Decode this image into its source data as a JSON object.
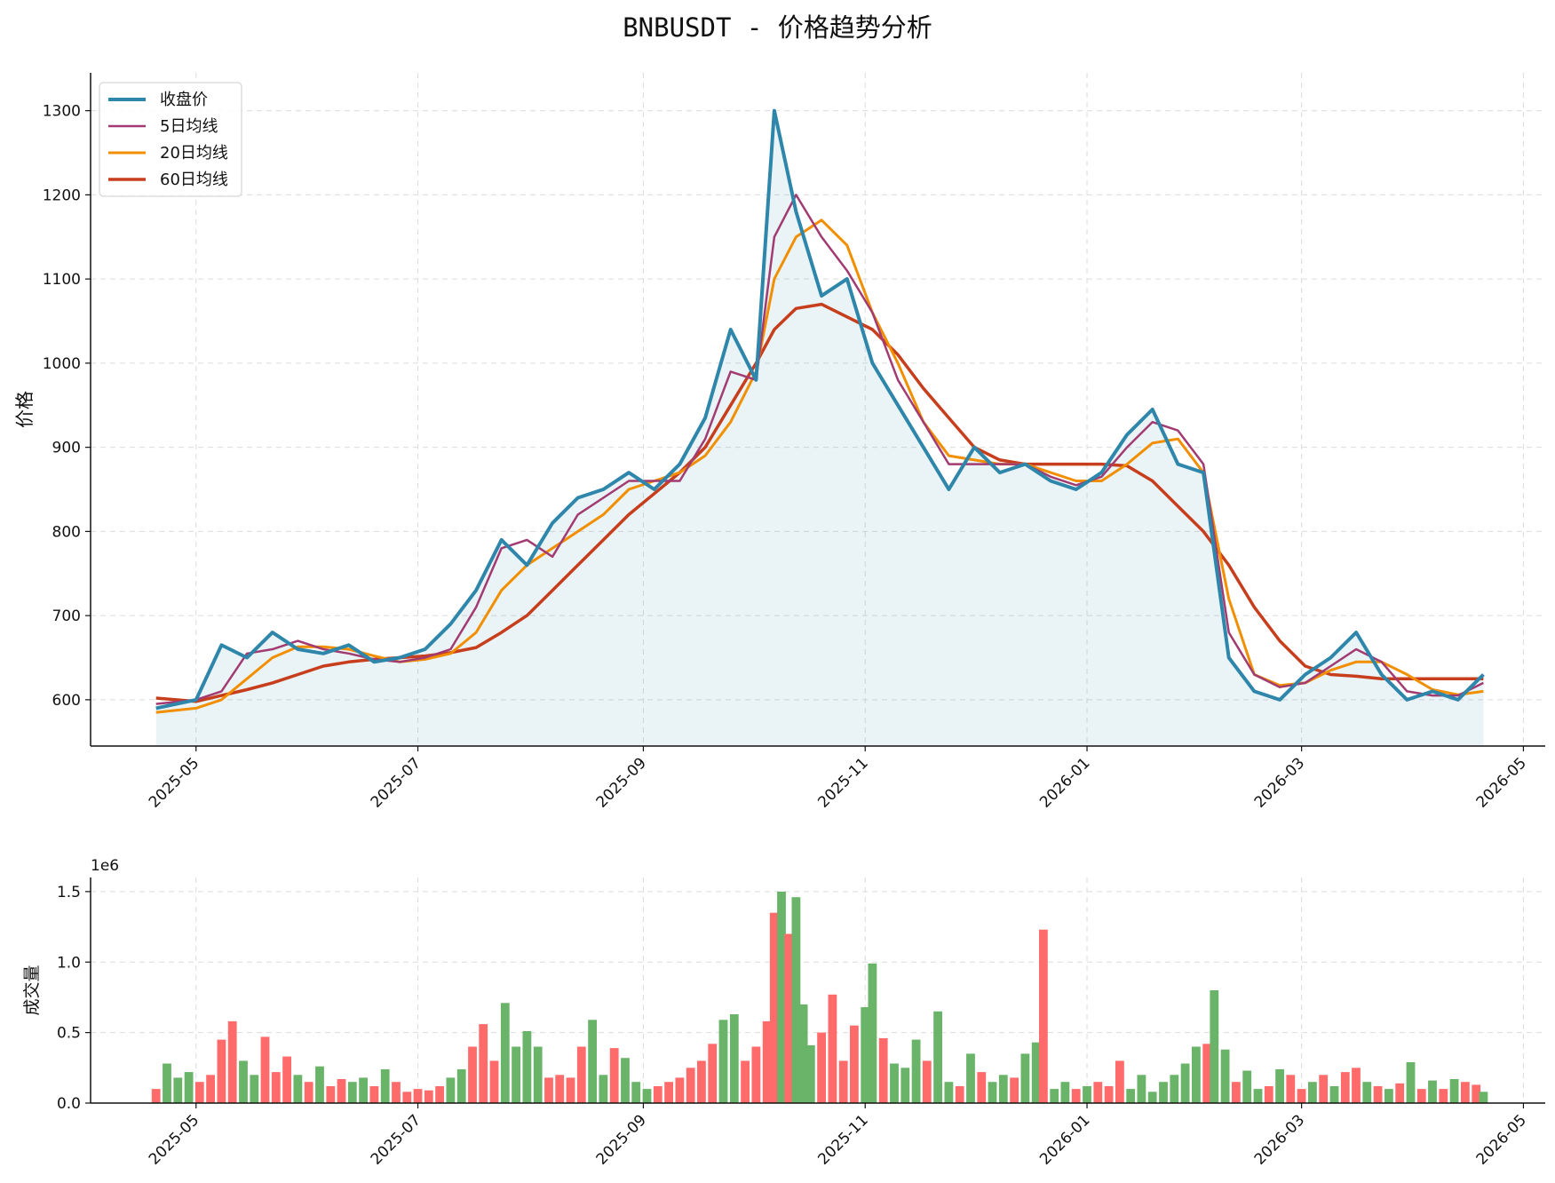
{
  "title": "BNBUSDT - 价格趋势分析",
  "chart_data": [
    {
      "type": "line",
      "ylabel": "价格",
      "ylim": [
        545,
        1345
      ],
      "xlim": [
        "2025-04-02",
        "2026-05-07"
      ],
      "grid": true,
      "legend_position": "top-left",
      "yticks": [
        600,
        700,
        800,
        900,
        1000,
        1100,
        1200,
        1300
      ],
      "xticks": [
        "2025-05",
        "2025-07",
        "2025-09",
        "2025-11",
        "2026-01",
        "2026-03",
        "2026-05"
      ],
      "x": [
        "2025-04-20",
        "2025-05-01",
        "2025-05-08",
        "2025-05-15",
        "2025-05-22",
        "2025-05-29",
        "2025-06-05",
        "2025-06-12",
        "2025-06-19",
        "2025-06-26",
        "2025-07-03",
        "2025-07-10",
        "2025-07-17",
        "2025-07-24",
        "2025-07-31",
        "2025-08-07",
        "2025-08-14",
        "2025-08-21",
        "2025-08-28",
        "2025-09-04",
        "2025-09-11",
        "2025-09-18",
        "2025-09-25",
        "2025-10-02",
        "2025-10-07",
        "2025-10-13",
        "2025-10-20",
        "2025-10-27",
        "2025-11-03",
        "2025-11-10",
        "2025-11-17",
        "2025-11-24",
        "2025-12-01",
        "2025-12-08",
        "2025-12-15",
        "2025-12-22",
        "2025-12-29",
        "2026-01-05",
        "2026-01-12",
        "2026-01-19",
        "2026-01-26",
        "2026-02-02",
        "2026-02-09",
        "2026-02-16",
        "2026-02-23",
        "2026-03-02",
        "2026-03-09",
        "2026-03-16",
        "2026-03-23",
        "2026-03-30",
        "2026-04-06",
        "2026-04-13",
        "2026-04-20"
      ],
      "series": [
        {
          "name": "收盘价",
          "color": "#2e86ab",
          "values": [
            590,
            600,
            665,
            650,
            680,
            660,
            655,
            665,
            645,
            650,
            660,
            690,
            730,
            790,
            760,
            810,
            840,
            850,
            870,
            850,
            880,
            935,
            1040,
            980,
            1300,
            1180,
            1080,
            1100,
            1000,
            950,
            900,
            850,
            900,
            870,
            880,
            860,
            850,
            870,
            915,
            945,
            880,
            870,
            650,
            610,
            600,
            630,
            650,
            680,
            630,
            600,
            610,
            600,
            630
          ]
        },
        {
          "name": "5日均线",
          "color": "#a23b72",
          "values": [
            595,
            600,
            610,
            655,
            660,
            670,
            660,
            655,
            648,
            645,
            650,
            660,
            710,
            780,
            790,
            770,
            820,
            840,
            860,
            860,
            860,
            910,
            990,
            980,
            1150,
            1200,
            1150,
            1110,
            1060,
            980,
            930,
            880,
            880,
            880,
            880,
            865,
            855,
            865,
            900,
            930,
            920,
            880,
            680,
            630,
            615,
            620,
            640,
            660,
            645,
            610,
            605,
            605,
            620
          ]
        },
        {
          "name": "20日均线",
          "color": "#f18f01",
          "values": [
            585,
            590,
            600,
            625,
            650,
            663,
            663,
            660,
            652,
            645,
            648,
            655,
            680,
            730,
            760,
            780,
            800,
            820,
            850,
            860,
            870,
            890,
            930,
            990,
            1100,
            1150,
            1170,
            1140,
            1060,
            1000,
            930,
            890,
            885,
            880,
            880,
            870,
            860,
            860,
            880,
            905,
            910,
            870,
            720,
            630,
            617,
            620,
            635,
            645,
            645,
            630,
            612,
            606,
            610
          ]
        },
        {
          "name": "60日均线",
          "color": "#c73e1d",
          "values": [
            602,
            598,
            605,
            612,
            620,
            630,
            640,
            645,
            648,
            650,
            652,
            656,
            662,
            680,
            700,
            730,
            760,
            790,
            820,
            845,
            870,
            900,
            950,
            1000,
            1040,
            1065,
            1070,
            1055,
            1040,
            1010,
            970,
            935,
            900,
            885,
            880,
            880,
            880,
            880,
            878,
            860,
            830,
            800,
            760,
            710,
            670,
            640,
            630,
            628,
            625,
            625,
            625,
            625,
            625
          ]
        }
      ]
    },
    {
      "type": "bar",
      "ylabel": "成交量",
      "ylim": [
        0,
        1600000
      ],
      "yticks_text": [
        "0.0",
        "0.5",
        "1.0",
        "1.5"
      ],
      "offset_text": "1e6",
      "xticks": [
        "2025-05",
        "2025-07",
        "2025-09",
        "2025-11",
        "2026-01",
        "2026-03",
        "2026-05"
      ],
      "up_color": "#6ab46a",
      "down_color": "#ff6b6b",
      "bars": [
        {
          "date": "2025-04-20",
          "v": 100000,
          "up": false
        },
        {
          "date": "2025-04-23",
          "v": 280000,
          "up": true
        },
        {
          "date": "2025-04-26",
          "v": 180000,
          "up": true
        },
        {
          "date": "2025-04-29",
          "v": 220000,
          "up": true
        },
        {
          "date": "2025-05-02",
          "v": 150000,
          "up": false
        },
        {
          "date": "2025-05-05",
          "v": 200000,
          "up": false
        },
        {
          "date": "2025-05-08",
          "v": 450000,
          "up": false
        },
        {
          "date": "2025-05-11",
          "v": 580000,
          "up": false
        },
        {
          "date": "2025-05-14",
          "v": 300000,
          "up": true
        },
        {
          "date": "2025-05-17",
          "v": 200000,
          "up": true
        },
        {
          "date": "2025-05-20",
          "v": 470000,
          "up": false
        },
        {
          "date": "2025-05-23",
          "v": 220000,
          "up": false
        },
        {
          "date": "2025-05-26",
          "v": 330000,
          "up": false
        },
        {
          "date": "2025-05-29",
          "v": 200000,
          "up": true
        },
        {
          "date": "2025-06-01",
          "v": 150000,
          "up": false
        },
        {
          "date": "2025-06-04",
          "v": 260000,
          "up": true
        },
        {
          "date": "2025-06-07",
          "v": 120000,
          "up": false
        },
        {
          "date": "2025-06-10",
          "v": 170000,
          "up": false
        },
        {
          "date": "2025-06-13",
          "v": 150000,
          "up": true
        },
        {
          "date": "2025-06-16",
          "v": 180000,
          "up": true
        },
        {
          "date": "2025-06-19",
          "v": 120000,
          "up": false
        },
        {
          "date": "2025-06-22",
          "v": 240000,
          "up": true
        },
        {
          "date": "2025-06-25",
          "v": 150000,
          "up": false
        },
        {
          "date": "2025-06-28",
          "v": 80000,
          "up": false
        },
        {
          "date": "2025-07-01",
          "v": 100000,
          "up": false
        },
        {
          "date": "2025-07-04",
          "v": 90000,
          "up": false
        },
        {
          "date": "2025-07-07",
          "v": 120000,
          "up": false
        },
        {
          "date": "2025-07-10",
          "v": 180000,
          "up": true
        },
        {
          "date": "2025-07-13",
          "v": 240000,
          "up": true
        },
        {
          "date": "2025-07-16",
          "v": 400000,
          "up": false
        },
        {
          "date": "2025-07-19",
          "v": 560000,
          "up": false
        },
        {
          "date": "2025-07-22",
          "v": 300000,
          "up": false
        },
        {
          "date": "2025-07-25",
          "v": 710000,
          "up": true
        },
        {
          "date": "2025-07-28",
          "v": 400000,
          "up": true
        },
        {
          "date": "2025-07-31",
          "v": 510000,
          "up": true
        },
        {
          "date": "2025-08-03",
          "v": 400000,
          "up": true
        },
        {
          "date": "2025-08-06",
          "v": 180000,
          "up": false
        },
        {
          "date": "2025-08-09",
          "v": 200000,
          "up": false
        },
        {
          "date": "2025-08-12",
          "v": 180000,
          "up": false
        },
        {
          "date": "2025-08-15",
          "v": 400000,
          "up": false
        },
        {
          "date": "2025-08-18",
          "v": 590000,
          "up": true
        },
        {
          "date": "2025-08-21",
          "v": 200000,
          "up": true
        },
        {
          "date": "2025-08-24",
          "v": 390000,
          "up": false
        },
        {
          "date": "2025-08-27",
          "v": 320000,
          "up": true
        },
        {
          "date": "2025-08-30",
          "v": 150000,
          "up": true
        },
        {
          "date": "2025-09-02",
          "v": 100000,
          "up": true
        },
        {
          "date": "2025-09-05",
          "v": 120000,
          "up": false
        },
        {
          "date": "2025-09-08",
          "v": 150000,
          "up": false
        },
        {
          "date": "2025-09-11",
          "v": 180000,
          "up": false
        },
        {
          "date": "2025-09-14",
          "v": 250000,
          "up": false
        },
        {
          "date": "2025-09-17",
          "v": 300000,
          "up": false
        },
        {
          "date": "2025-09-20",
          "v": 420000,
          "up": false
        },
        {
          "date": "2025-09-23",
          "v": 590000,
          "up": true
        },
        {
          "date": "2025-09-26",
          "v": 630000,
          "up": true
        },
        {
          "date": "2025-09-29",
          "v": 300000,
          "up": false
        },
        {
          "date": "2025-10-02",
          "v": 400000,
          "up": false
        },
        {
          "date": "2025-10-05",
          "v": 580000,
          "up": false
        },
        {
          "date": "2025-10-07",
          "v": 1350000,
          "up": false
        },
        {
          "date": "2025-10-09",
          "v": 1500000,
          "up": true
        },
        {
          "date": "2025-10-11",
          "v": 1200000,
          "up": false
        },
        {
          "date": "2025-10-13",
          "v": 1460000,
          "up": true
        },
        {
          "date": "2025-10-15",
          "v": 700000,
          "up": true
        },
        {
          "date": "2025-10-17",
          "v": 410000,
          "up": true
        },
        {
          "date": "2025-10-20",
          "v": 500000,
          "up": false
        },
        {
          "date": "2025-10-23",
          "v": 770000,
          "up": false
        },
        {
          "date": "2025-10-26",
          "v": 300000,
          "up": false
        },
        {
          "date": "2025-10-29",
          "v": 550000,
          "up": false
        },
        {
          "date": "2025-11-01",
          "v": 680000,
          "up": true
        },
        {
          "date": "2025-11-03",
          "v": 990000,
          "up": true
        },
        {
          "date": "2025-11-06",
          "v": 460000,
          "up": false
        },
        {
          "date": "2025-11-09",
          "v": 280000,
          "up": true
        },
        {
          "date": "2025-11-12",
          "v": 250000,
          "up": true
        },
        {
          "date": "2025-11-15",
          "v": 450000,
          "up": true
        },
        {
          "date": "2025-11-18",
          "v": 300000,
          "up": false
        },
        {
          "date": "2025-11-21",
          "v": 650000,
          "up": true
        },
        {
          "date": "2025-11-24",
          "v": 150000,
          "up": true
        },
        {
          "date": "2025-11-27",
          "v": 120000,
          "up": false
        },
        {
          "date": "2025-11-30",
          "v": 350000,
          "up": true
        },
        {
          "date": "2025-12-03",
          "v": 220000,
          "up": false
        },
        {
          "date": "2025-12-06",
          "v": 150000,
          "up": true
        },
        {
          "date": "2025-12-09",
          "v": 200000,
          "up": true
        },
        {
          "date": "2025-12-12",
          "v": 180000,
          "up": false
        },
        {
          "date": "2025-12-15",
          "v": 350000,
          "up": true
        },
        {
          "date": "2025-12-18",
          "v": 430000,
          "up": true
        },
        {
          "date": "2025-12-20",
          "v": 1230000,
          "up": false
        },
        {
          "date": "2025-12-23",
          "v": 100000,
          "up": true
        },
        {
          "date": "2025-12-26",
          "v": 150000,
          "up": true
        },
        {
          "date": "2025-12-29",
          "v": 100000,
          "up": false
        },
        {
          "date": "2026-01-01",
          "v": 120000,
          "up": true
        },
        {
          "date": "2026-01-04",
          "v": 150000,
          "up": false
        },
        {
          "date": "2026-01-07",
          "v": 120000,
          "up": false
        },
        {
          "date": "2026-01-10",
          "v": 300000,
          "up": false
        },
        {
          "date": "2026-01-13",
          "v": 100000,
          "up": true
        },
        {
          "date": "2026-01-16",
          "v": 200000,
          "up": true
        },
        {
          "date": "2026-01-19",
          "v": 80000,
          "up": true
        },
        {
          "date": "2026-01-22",
          "v": 150000,
          "up": true
        },
        {
          "date": "2026-01-25",
          "v": 200000,
          "up": true
        },
        {
          "date": "2026-01-28",
          "v": 280000,
          "up": true
        },
        {
          "date": "2026-01-31",
          "v": 400000,
          "up": true
        },
        {
          "date": "2026-02-03",
          "v": 420000,
          "up": false
        },
        {
          "date": "2026-02-05",
          "v": 800000,
          "up": true
        },
        {
          "date": "2026-02-08",
          "v": 380000,
          "up": true
        },
        {
          "date": "2026-02-11",
          "v": 150000,
          "up": false
        },
        {
          "date": "2026-02-14",
          "v": 230000,
          "up": true
        },
        {
          "date": "2026-02-17",
          "v": 100000,
          "up": true
        },
        {
          "date": "2026-02-20",
          "v": 120000,
          "up": false
        },
        {
          "date": "2026-02-23",
          "v": 240000,
          "up": true
        },
        {
          "date": "2026-02-26",
          "v": 200000,
          "up": false
        },
        {
          "date": "2026-03-01",
          "v": 100000,
          "up": false
        },
        {
          "date": "2026-03-04",
          "v": 150000,
          "up": true
        },
        {
          "date": "2026-03-07",
          "v": 200000,
          "up": false
        },
        {
          "date": "2026-03-10",
          "v": 120000,
          "up": true
        },
        {
          "date": "2026-03-13",
          "v": 220000,
          "up": false
        },
        {
          "date": "2026-03-16",
          "v": 250000,
          "up": false
        },
        {
          "date": "2026-03-19",
          "v": 150000,
          "up": true
        },
        {
          "date": "2026-03-22",
          "v": 120000,
          "up": false
        },
        {
          "date": "2026-03-25",
          "v": 100000,
          "up": true
        },
        {
          "date": "2026-03-28",
          "v": 140000,
          "up": false
        },
        {
          "date": "2026-03-31",
          "v": 290000,
          "up": true
        },
        {
          "date": "2026-04-03",
          "v": 100000,
          "up": false
        },
        {
          "date": "2026-04-06",
          "v": 160000,
          "up": true
        },
        {
          "date": "2026-04-09",
          "v": 100000,
          "up": false
        },
        {
          "date": "2026-04-12",
          "v": 170000,
          "up": true
        },
        {
          "date": "2026-04-15",
          "v": 150000,
          "up": false
        },
        {
          "date": "2026-04-18",
          "v": 130000,
          "up": false
        },
        {
          "date": "2026-04-20",
          "v": 80000,
          "up": true
        }
      ]
    }
  ]
}
